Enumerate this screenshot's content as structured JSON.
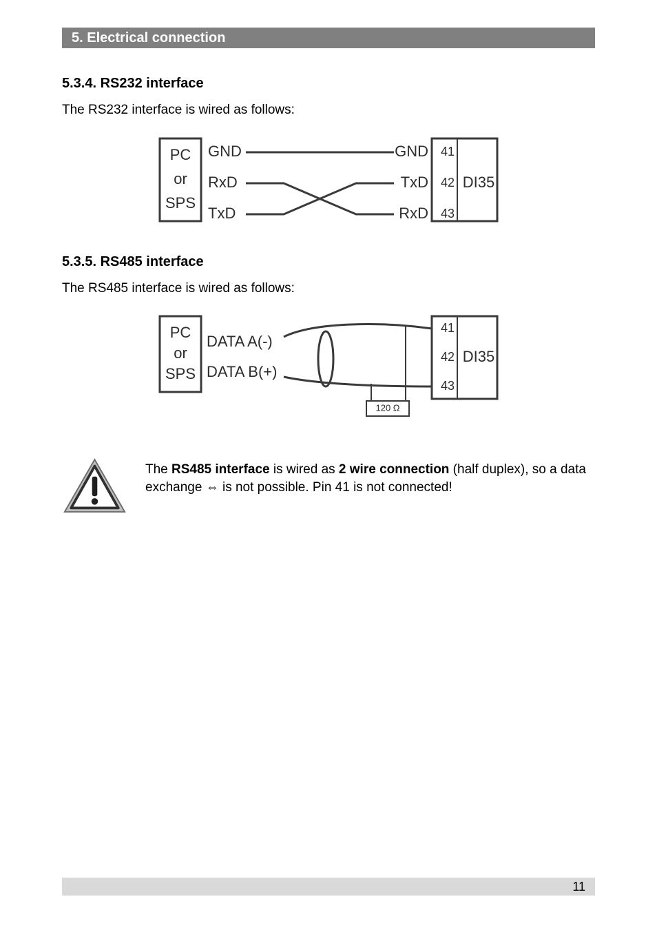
{
  "header": {
    "section_number": "5.  Electrical connection"
  },
  "rs232": {
    "heading": "5.3.4. RS232 interface",
    "intro": "The RS232 interface is wired as follows:",
    "left_box": {
      "line1": "PC",
      "line2": "or",
      "line3": "SPS"
    },
    "left_labels": [
      "GND",
      "RxD",
      "TxD"
    ],
    "right_labels": [
      "GND",
      "TxD",
      "RxD"
    ],
    "right_pins": [
      "41",
      "42",
      "43"
    ],
    "device": "DI35"
  },
  "rs485": {
    "heading": "5.3.5. RS485 interface",
    "intro": "The RS485 interface is wired as follows:",
    "left_box": {
      "line1": "PC",
      "line2": "or",
      "line3": "SPS"
    },
    "left_labels": [
      "DATA A(-)",
      "DATA B(+)"
    ],
    "right_pins": [
      "41",
      "42",
      "43"
    ],
    "device": "DI35",
    "resistor_label": "120 Ω"
  },
  "caution": {
    "text_prefix": "The ",
    "bold": "RS485 interface",
    "text_mid1": " is wired as ",
    "bold2": "2 wire connection",
    "text_mid2": " (half duplex), so a data exchange ",
    "arrow": "⇔",
    "text_mid3": " is not possible. Pin 41 is not connected!"
  },
  "footer": {
    "page": "11"
  },
  "styles": {
    "header_bg": "#808080",
    "footer_bg": "#d9d9d9",
    "diagram_stroke": "#3a3a3a",
    "diagram_stroke_width": 3,
    "diagram_font_family": "Arial",
    "diagram_font_size": 22,
    "caution_icon_size": 95
  }
}
